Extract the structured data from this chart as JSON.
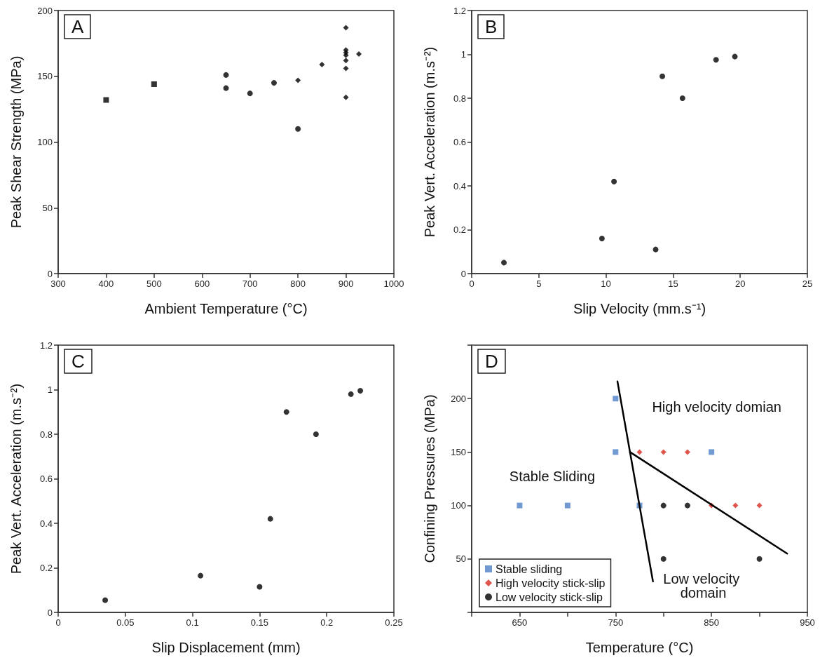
{
  "chart_data": [
    {
      "type": "scatter",
      "title": "A",
      "xlabel": "Ambient Temperature (°C)",
      "ylabel": "Peak Shear Strength (MPa)",
      "xlim": [
        300,
        1000
      ],
      "xticks": [
        300,
        400,
        500,
        600,
        700,
        800,
        900,
        1000
      ],
      "ylim": [
        0,
        200
      ],
      "yticks": [
        0,
        50,
        100,
        150,
        200
      ],
      "series": [
        {
          "color": "#000000",
          "marker": "square",
          "x": [
            400,
            500
          ],
          "values": [
            132,
            144
          ]
        },
        {
          "color": "#000000",
          "marker": "circle",
          "x": [
            650,
            650,
            700,
            750,
            800
          ],
          "values": [
            151,
            141,
            137,
            145,
            110
          ]
        },
        {
          "color": "#000000",
          "marker": "diamond",
          "x": [
            800,
            850,
            900,
            900,
            900,
            900,
            900,
            900,
            900,
            927
          ],
          "values": [
            147,
            159,
            187,
            170,
            168,
            166,
            162,
            156,
            134,
            167
          ]
        }
      ]
    },
    {
      "type": "scatter",
      "title": "B",
      "xlabel": "Slip Velocity (mm.s⁻¹)",
      "ylabel": "Peak Vert. Acceleration (m.s⁻²)",
      "xlim": [
        0,
        25
      ],
      "xticks": [
        0,
        5,
        10,
        15,
        20,
        25
      ],
      "ylim": [
        0,
        1.2
      ],
      "yticks": [
        0,
        0.2,
        0.4,
        0.6,
        0.8,
        1,
        1.2
      ],
      "series": [
        {
          "color": "#000000",
          "marker": "circle",
          "x": [
            2.4,
            9.7,
            10.6,
            13.7,
            14.2,
            15.7,
            18.2,
            19.6
          ],
          "values": [
            0.05,
            0.16,
            0.42,
            0.11,
            0.9,
            0.8,
            0.975,
            0.99
          ]
        }
      ]
    },
    {
      "type": "scatter",
      "title": "C",
      "xlabel": "Slip Displacement (mm)",
      "ylabel": "Peak Vert. Acceleration (m.s⁻²)",
      "xlim": [
        0,
        0.25
      ],
      "xticks": [
        0,
        0.05,
        0.1,
        0.15,
        0.2,
        0.25
      ],
      "ylim": [
        0,
        1.2
      ],
      "yticks": [
        0,
        0.2,
        0.4,
        0.6,
        0.8,
        1,
        1.2
      ],
      "series": [
        {
          "color": "#000000",
          "marker": "circle",
          "x": [
            0.035,
            0.106,
            0.15,
            0.158,
            0.17,
            0.192,
            0.218,
            0.225
          ],
          "values": [
            0.055,
            0.165,
            0.115,
            0.42,
            0.9,
            0.8,
            0.98,
            0.995
          ]
        }
      ]
    },
    {
      "type": "scatter",
      "title": "D",
      "xlabel": "Temperature (°C)",
      "ylabel": "Confining Pressures (MPa)",
      "xlim": [
        600,
        950
      ],
      "xticks": [
        {
          "value": 600,
          "label": null
        },
        650,
        {
          "value": 700,
          "label": null
        },
        750,
        {
          "value": 800,
          "label": null
        },
        850,
        {
          "value": 900,
          "label": null
        },
        950
      ],
      "ylim": [
        0,
        250
      ],
      "yticks": [
        {
          "value": 0,
          "label": null
        },
        50,
        100,
        150,
        200,
        {
          "value": 250,
          "label": null
        }
      ],
      "legend": "bottom left",
      "series": [
        {
          "name": "Stable sliding",
          "color": "#4f81c7",
          "marker": "square",
          "x": [
            650,
            700,
            750,
            750,
            775,
            850
          ],
          "values": [
            100,
            100,
            200,
            150,
            100,
            150
          ]
        },
        {
          "name": "High velocity stick-slip",
          "color": "#d42a1e",
          "marker": "diamond",
          "x": [
            775,
            800,
            825,
            850,
            875,
            900
          ],
          "values": [
            150,
            150,
            150,
            100,
            100,
            100
          ]
        },
        {
          "name": "Low velocity stick-slip",
          "color": "#000000",
          "marker": "circle",
          "x": [
            800,
            825,
            800,
            900
          ],
          "values": [
            100,
            100,
            50,
            50
          ]
        },
        {
          "type": "line",
          "color": "#000000",
          "marker": "none",
          "x": [
            752,
            789
          ],
          "values": [
            216,
            29
          ]
        },
        {
          "type": "line",
          "color": "#000000",
          "marker": "none",
          "x": [
            765,
            929
          ],
          "values": [
            150,
            55
          ]
        }
      ],
      "annotations": [
        "Stable Sliding",
        "High velocity domian",
        "Low velocity domain"
      ]
    }
  ]
}
